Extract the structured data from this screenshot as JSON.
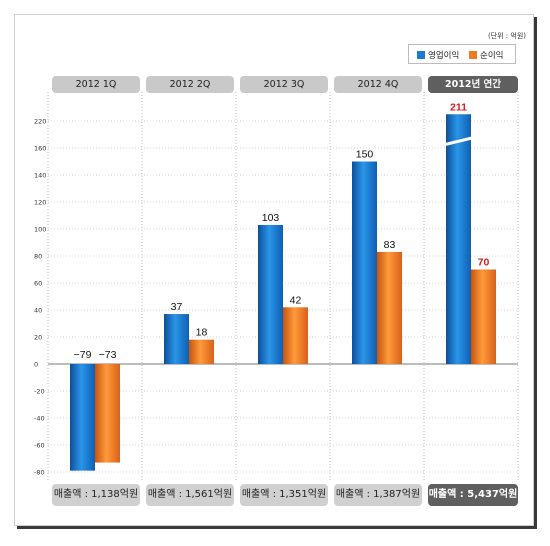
{
  "unit_note": "(단위 : 억원)",
  "legend": [
    {
      "label": "영업이익",
      "color": "#1a7bd0"
    },
    {
      "label": "순이익",
      "color": "#f07a22"
    }
  ],
  "chart_data": {
    "type": "bar",
    "categories": [
      "2012 1Q",
      "2012 2Q",
      "2012 3Q",
      "2012 4Q",
      "2012년 연간"
    ],
    "series": [
      {
        "name": "영업이익",
        "values": [
          -79,
          37,
          103,
          150,
          211
        ],
        "color": "#1a7bd0"
      },
      {
        "name": "순이익",
        "values": [
          -73,
          18,
          42,
          83,
          70
        ],
        "color": "#f07a22"
      }
    ],
    "data_labels": [
      [
        "−79",
        "−73"
      ],
      [
        "37",
        "18"
      ],
      [
        "103",
        "42"
      ],
      [
        "150",
        "83"
      ],
      [
        "211",
        "70"
      ]
    ],
    "highlight_label_color": "#d42020",
    "y_ticks": [
      "220",
      "160",
      "140",
      "120",
      "100",
      "80",
      "60",
      "40",
      "20",
      "0",
      "-20",
      "-40",
      "-60",
      "-80"
    ],
    "ylim": [
      -80,
      220
    ],
    "axis_break_on": "2012년 연간",
    "grid": true
  },
  "sales": [
    "매출액 : 1,138억원",
    "매출액 : 1,561억원",
    "매출액 : 1,351억원",
    "매출액 : 1,387억원",
    "매출액 : 5,437억원"
  ]
}
